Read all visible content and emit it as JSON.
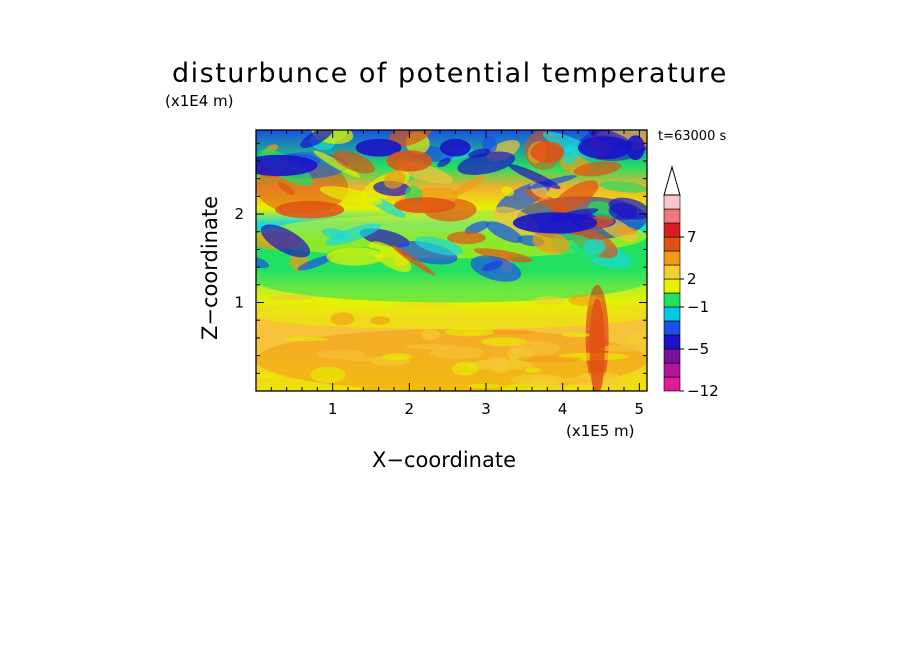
{
  "chart_data": {
    "type": "heatmap",
    "title": "disturbunce of potential temperature",
    "xlabel": "X−coordinate",
    "ylabel": "Z−coordinate",
    "x_unit_label": "(x1E5 m)",
    "y_unit_label": "(x1E4 m)",
    "time_label": "t=63000 s",
    "xlim": [
      0,
      5.1
    ],
    "ylim": [
      0,
      2.95
    ],
    "x_ticks": [
      {
        "v": 1,
        "label": "1"
      },
      {
        "v": 2,
        "label": "2"
      },
      {
        "v": 3,
        "label": "3"
      },
      {
        "v": 4,
        "label": "4"
      },
      {
        "v": 5,
        "label": "5"
      }
    ],
    "y_ticks": [
      {
        "v": 1,
        "label": "1"
      },
      {
        "v": 2,
        "label": "2"
      }
    ],
    "colorbar": {
      "colors": [
        "#e31b9b",
        "#b5149b",
        "#7b119d",
        "#1a13c8",
        "#1a50e8",
        "#00c8e6",
        "#22e060",
        "#e6f200",
        "#f2d230",
        "#f29a16",
        "#e05214",
        "#d81e1e",
        "#f07878",
        "#f8c8c8"
      ],
      "labels": [
        {
          "v": -12,
          "label": "−12"
        },
        {
          "v": -5,
          "label": "−5"
        },
        {
          "v": -1,
          "label": "−1"
        },
        {
          "v": 2,
          "label": "2"
        },
        {
          "v": 7,
          "label": "7"
        }
      ],
      "label_positions": [
        0,
        3,
        6,
        8,
        11
      ]
    },
    "field_features": [
      {
        "x": [
          0,
          5.1
        ],
        "z": [
          0,
          0.7
        ],
        "level": "warm",
        "value": 2.5
      },
      {
        "x": [
          0,
          5.1
        ],
        "z": [
          0.7,
          1.0
        ],
        "level": "slightly-warm",
        "value": 0.8
      },
      {
        "x": [
          0,
          5.1
        ],
        "z": [
          1.0,
          1.5
        ],
        "level": "near-zero",
        "value": -0.2
      },
      {
        "x": [
          0,
          5.1
        ],
        "z": [
          1.5,
          2.0
        ],
        "level": "mixed",
        "value": 0.5
      },
      {
        "x": [
          0,
          1.2
        ],
        "z": [
          2.0,
          2.6
        ],
        "level": "warm",
        "value": 3.5
      },
      {
        "x": [
          0.1,
          1.2
        ],
        "z": [
          2.4,
          2.7
        ],
        "level": "cold",
        "value": -4.5
      },
      {
        "x": [
          3.4,
          5.1
        ],
        "z": [
          1.7,
          2.2
        ],
        "level": "cold",
        "value": -5
      },
      {
        "x": [
          4.2,
          5.1
        ],
        "z": [
          2.6,
          2.95
        ],
        "level": "cold",
        "value": -5
      },
      {
        "x": [
          3.5,
          4.0
        ],
        "z": [
          2.5,
          2.95
        ],
        "level": "warm",
        "value": 4
      },
      {
        "x": [
          4.3,
          4.6
        ],
        "z": [
          0,
          1.2
        ],
        "level": "hot",
        "value": 6
      }
    ]
  }
}
